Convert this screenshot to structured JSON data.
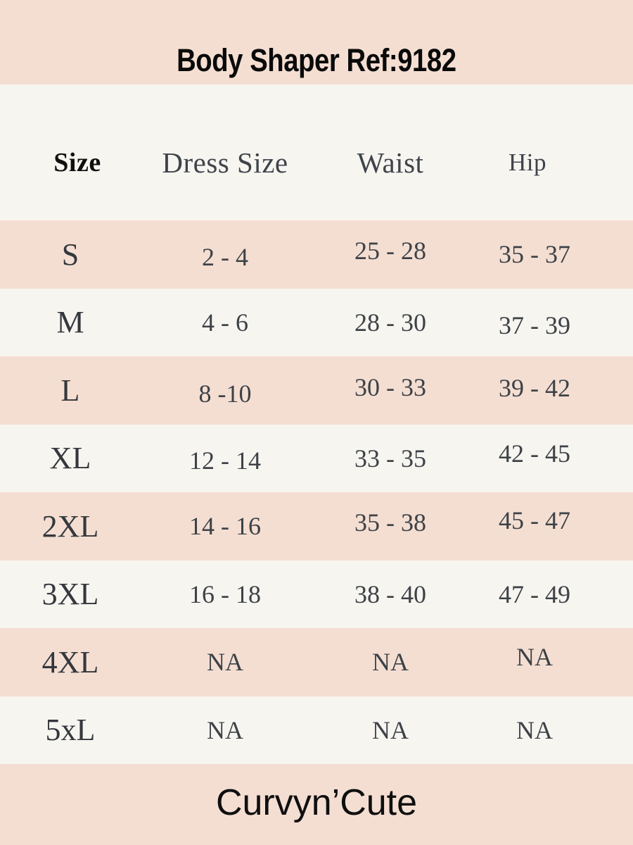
{
  "title": "Body Shaper Ref:9182",
  "brand": "Curvyn’Cute",
  "colors": {
    "band_pink": "#f4ded2",
    "background_cream": "#f7f5f0",
    "text_dark_gray": "#3d4247",
    "text_black": "#0a0a0a"
  },
  "chart_data": {
    "type": "table",
    "title": "Body Shaper Ref:9182",
    "columns": [
      "Size",
      "Dress Size",
      "Waist",
      "Hip"
    ],
    "rows": [
      [
        "S",
        "2 - 4",
        "25 - 28",
        "35 - 37"
      ],
      [
        "M",
        "4 - 6",
        "28 - 30",
        "37 - 39"
      ],
      [
        "L",
        "8 -10",
        "30 - 33",
        "39 - 42"
      ],
      [
        "XL",
        "12 - 14",
        "33 - 35",
        "42 - 45"
      ],
      [
        "2XL",
        "14 - 16",
        "35 - 38",
        "45 - 47"
      ],
      [
        "3XL",
        "16 - 18",
        "38 - 40",
        "47 - 49"
      ],
      [
        "4XL",
        "NA",
        "NA",
        "NA"
      ],
      [
        "5xL",
        "NA",
        "NA",
        "NA"
      ]
    ],
    "layout": {
      "row_striping": "alternating pink/cream starting pink",
      "footer": "Curvyn’Cute"
    }
  }
}
